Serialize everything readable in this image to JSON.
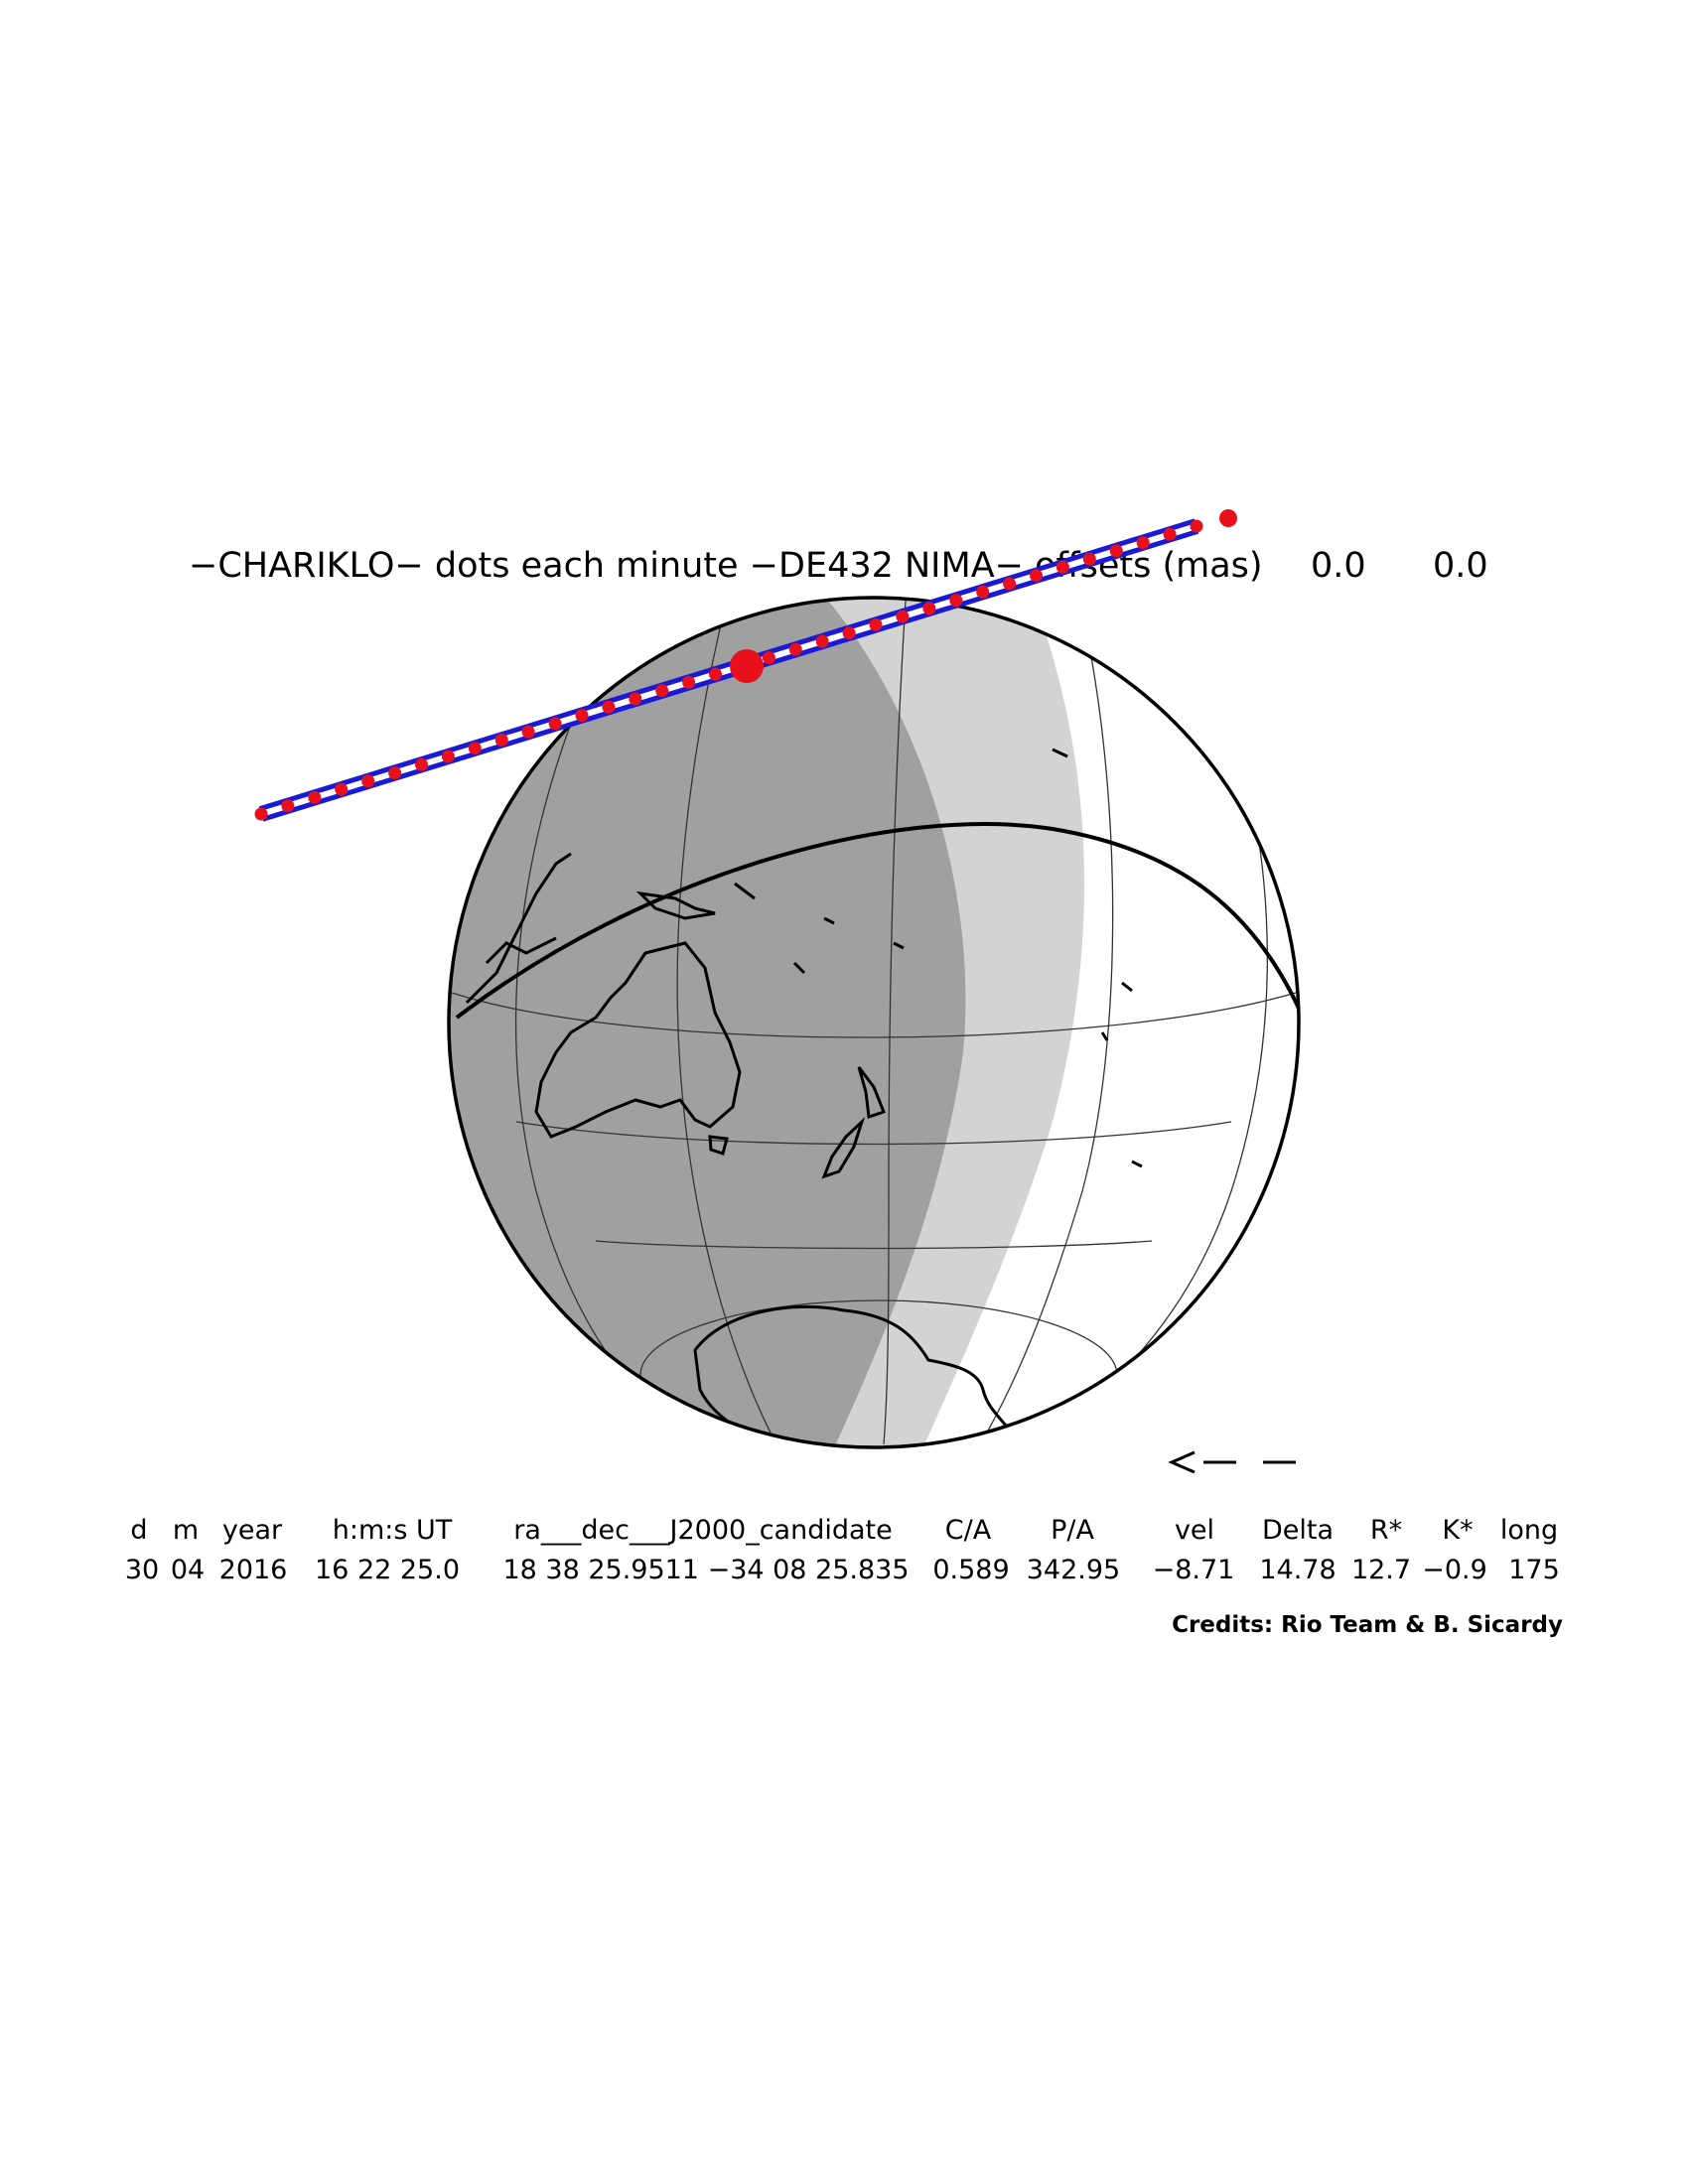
{
  "title": {
    "text": "−CHARIKLO− dots each minute −DE432 NIMA− offsets (mas)",
    "offset_ra": "0.0",
    "offset_dec": "0.0"
  },
  "arrow": "<−−",
  "table": {
    "headers": [
      "d",
      "m",
      "year",
      "h:m:s UT",
      "ra___dec___J2000_candidate",
      "C/A",
      "P/A",
      "vel",
      "Delta",
      "R*",
      "K*",
      "long"
    ],
    "values": [
      "30",
      "04",
      "2016",
      "16 22 25.0",
      "18 38 25.9511 −34 08 25.835",
      "0.589",
      "342.95",
      "−8.71",
      "14.78",
      "12.7",
      "−0.9",
      "175"
    ]
  },
  "credits": "Credits: Rio Team & B. Sicardy",
  "colors": {
    "night": "#a0a0a0",
    "twilight": "#d3d3d3",
    "day": "#ffffff",
    "path_limits": "#1a1ad6",
    "minute_dots": "#e8101a",
    "centerline": "#ffffff"
  },
  "icons": [
    "left-arrow-icon"
  ]
}
